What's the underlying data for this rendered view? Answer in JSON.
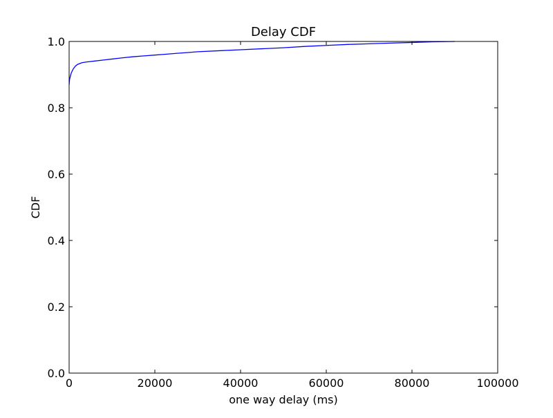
{
  "chart_data": {
    "type": "line",
    "title": "Delay CDF",
    "xlabel": "one way delay (ms)",
    "ylabel": "CDF",
    "xlim": [
      0,
      100000
    ],
    "ylim": [
      0.0,
      1.0
    ],
    "grid": false,
    "line_color": "#0000ff",
    "x_ticks": [
      0,
      20000,
      40000,
      60000,
      80000,
      100000
    ],
    "x_tick_labels": [
      "0",
      "20000",
      "40000",
      "60000",
      "80000",
      "100000"
    ],
    "y_ticks": [
      0.0,
      0.2,
      0.4,
      0.6,
      0.8,
      1.0
    ],
    "y_tick_labels": [
      "0.0",
      "0.2",
      "0.4",
      "0.6",
      "0.8",
      "1.0"
    ],
    "series": [
      {
        "x": [
          0,
          100,
          300,
          500,
          800,
          1000,
          1500,
          2000,
          3000,
          4000,
          6000,
          8000,
          10000,
          12000,
          15000,
          18000,
          20000,
          22000,
          25000,
          28000,
          30000,
          35000,
          40000,
          45000,
          50000,
          55000,
          60000,
          65000,
          70000,
          75000,
          80000,
          85000,
          90000
        ],
        "y": [
          0.87,
          0.885,
          0.896,
          0.905,
          0.913,
          0.918,
          0.926,
          0.931,
          0.936,
          0.938,
          0.941,
          0.944,
          0.947,
          0.95,
          0.954,
          0.957,
          0.959,
          0.961,
          0.964,
          0.967,
          0.969,
          0.972,
          0.975,
          0.978,
          0.981,
          0.985,
          0.988,
          0.991,
          0.993,
          0.995,
          0.997,
          0.999,
          1.0
        ]
      }
    ]
  }
}
